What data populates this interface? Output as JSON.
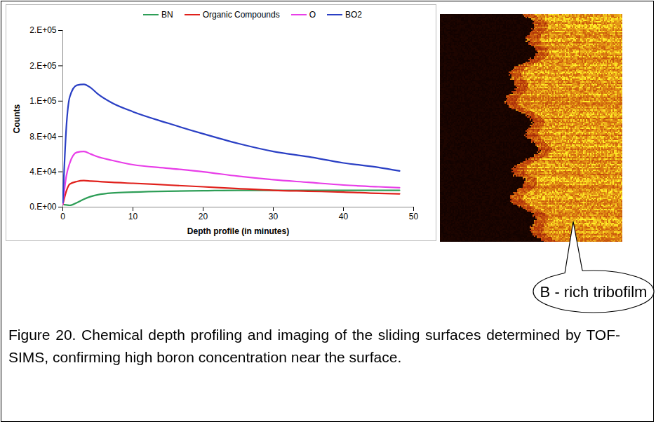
{
  "chart_data": {
    "type": "line",
    "x_label": "Depth profile (in minutes)",
    "y_label": "Counts",
    "x": [
      0,
      0.5,
      1,
      2,
      3,
      4,
      5,
      7,
      10,
      15,
      20,
      25,
      30,
      35,
      40,
      45,
      48
    ],
    "xlim": [
      0,
      50
    ],
    "xticks": [
      0,
      10,
      20,
      30,
      40,
      50
    ],
    "ylim": [
      0,
      200000
    ],
    "yticks": [
      {
        "value": 0,
        "label": "0.E+00"
      },
      {
        "value": 40000,
        "label": "4.E+04"
      },
      {
        "value": 80000,
        "label": "8.E+04"
      },
      {
        "value": 120000,
        "label": "1.E+05"
      },
      {
        "value": 160000,
        "label": "2.E+05"
      },
      {
        "value": 200000,
        "label": "2.E+05"
      }
    ],
    "grid": false,
    "legend": "top",
    "series": [
      {
        "name": "BN",
        "color": "#2e9e57",
        "values": [
          3000,
          2500,
          2000,
          5000,
          9000,
          12000,
          14000,
          16000,
          17000,
          18000,
          18500,
          19000,
          19000,
          19000,
          19000,
          19000,
          19000
        ]
      },
      {
        "name": "Organic Compounds",
        "color": "#e0201b",
        "values": [
          3000,
          18000,
          26000,
          29000,
          30000,
          29500,
          29000,
          28000,
          27000,
          25000,
          23000,
          21000,
          19000,
          18000,
          17000,
          15500,
          15000
        ]
      },
      {
        "name": "O",
        "color": "#e83ee8",
        "values": [
          3000,
          35000,
          50000,
          62000,
          63000,
          60000,
          57000,
          53000,
          48000,
          44000,
          40000,
          35000,
          31000,
          28000,
          25000,
          23000,
          22000
        ]
      },
      {
        "name": "BO2",
        "color": "#2a3fc4",
        "values": [
          5000,
          90000,
          125000,
          138000,
          139000,
          135000,
          128000,
          118000,
          108000,
          95000,
          83000,
          72000,
          63000,
          57000,
          50000,
          45000,
          41000
        ]
      }
    ],
    "annotations": [
      "B - rich tribofilm"
    ],
    "caption": "Figure 20. Chemical depth profiling and imaging of the sliding surfaces determined by TOF-SIMS, confirming high boron concentration near the surface."
  }
}
